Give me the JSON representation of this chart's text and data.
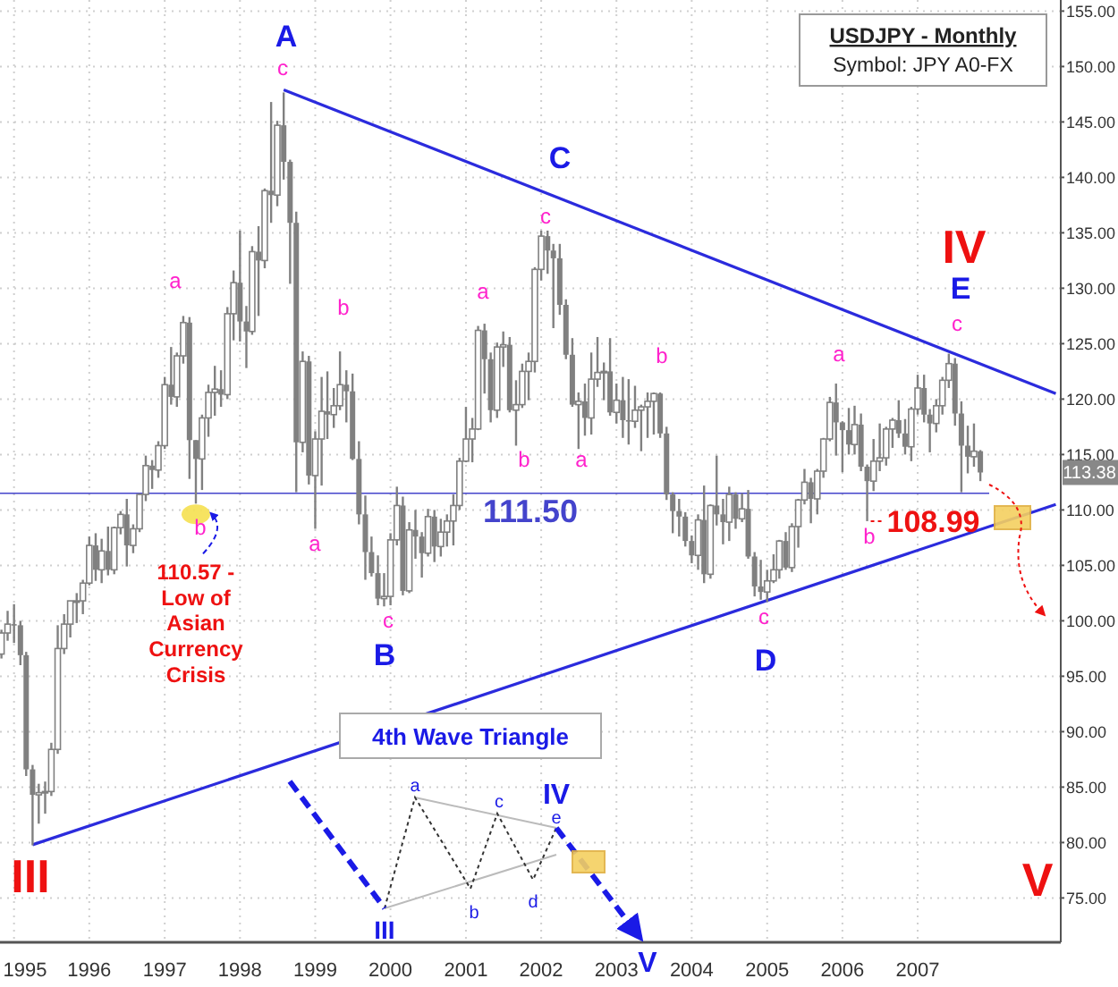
{
  "chart_data": {
    "type": "candlestick",
    "title": "USDJPY - Monthly",
    "subtitle": "Symbol: JPY A0-FX",
    "color": "#808080",
    "grid": true,
    "xlim": [
      "1994-10-25",
      "2008-11-25"
    ],
    "xticks": [
      "1995",
      "1996",
      "1997",
      "1998",
      "1999",
      "2000",
      "2001",
      "2002",
      "2003",
      "2004",
      "2005",
      "2006",
      "2007"
    ],
    "ylim": [
      71,
      156
    ],
    "yticks": [
      {
        "value": 75,
        "label": "75.00"
      },
      {
        "value": 80,
        "label": "80.00"
      },
      {
        "value": 85,
        "label": "85.00"
      },
      {
        "value": 90,
        "label": "90.00"
      },
      {
        "value": 95,
        "label": "95.00"
      },
      {
        "value": 100,
        "label": "100.00"
      },
      {
        "value": 105,
        "label": "105.00"
      },
      {
        "value": 110,
        "label": "110.00"
      },
      {
        "value": 115,
        "label": "115.00"
      },
      {
        "value": 120,
        "label": "120.00"
      },
      {
        "value": 125,
        "label": "125.00"
      },
      {
        "value": 130,
        "label": "130.00"
      },
      {
        "value": 135,
        "label": "135.00"
      },
      {
        "value": 140,
        "label": "140.00"
      },
      {
        "value": 145,
        "label": "145.00"
      },
      {
        "value": 150,
        "label": "150.00"
      },
      {
        "value": 155,
        "label": "155.00"
      }
    ],
    "x": [
      "1994-11",
      "1994-12",
      "1995-01",
      "1995-02",
      "1995-03",
      "1995-04",
      "1995-05",
      "1995-06",
      "1995-07",
      "1995-08",
      "1995-09",
      "1995-10",
      "1995-11",
      "1995-12",
      "1996-01",
      "1996-02",
      "1996-03",
      "1996-04",
      "1996-05",
      "1996-06",
      "1996-07",
      "1996-08",
      "1996-09",
      "1996-10",
      "1996-11",
      "1996-12",
      "1997-01",
      "1997-02",
      "1997-03",
      "1997-04",
      "1997-05",
      "1997-06",
      "1997-07",
      "1997-08",
      "1997-09",
      "1997-10",
      "1997-11",
      "1997-12",
      "1998-01",
      "1998-02",
      "1998-03",
      "1998-04",
      "1998-05",
      "1998-06",
      "1998-07",
      "1998-08",
      "1998-09",
      "1998-10",
      "1998-11",
      "1998-12",
      "1999-01",
      "1999-02",
      "1999-03",
      "1999-04",
      "1999-05",
      "1999-06",
      "1999-07",
      "1999-08",
      "1999-09",
      "1999-10",
      "1999-11",
      "1999-12",
      "2000-01",
      "2000-02",
      "2000-03",
      "2000-04",
      "2000-05",
      "2000-06",
      "2000-07",
      "2000-08",
      "2000-09",
      "2000-10",
      "2000-11",
      "2000-12",
      "2001-01",
      "2001-02",
      "2001-03",
      "2001-04",
      "2001-05",
      "2001-06",
      "2001-07",
      "2001-08",
      "2001-09",
      "2001-10",
      "2001-11",
      "2001-12",
      "2002-01",
      "2002-02",
      "2002-03",
      "2002-04",
      "2002-05",
      "2002-06",
      "2002-07",
      "2002-08",
      "2002-09",
      "2002-10",
      "2002-11",
      "2002-12",
      "2003-01",
      "2003-02",
      "2003-03",
      "2003-04",
      "2003-05",
      "2003-06",
      "2003-07",
      "2003-08",
      "2003-09",
      "2003-10",
      "2003-11",
      "2003-12",
      "2004-01",
      "2004-02",
      "2004-03",
      "2004-04",
      "2004-05",
      "2004-06",
      "2004-07",
      "2004-08",
      "2004-09",
      "2004-10",
      "2004-11",
      "2004-12",
      "2005-01",
      "2005-02",
      "2005-03",
      "2005-04",
      "2005-05",
      "2005-06",
      "2005-07",
      "2005-08",
      "2005-09",
      "2005-10",
      "2005-11",
      "2005-12",
      "2006-01",
      "2006-02",
      "2006-03",
      "2006-04",
      "2006-05",
      "2006-06",
      "2006-07",
      "2006-08",
      "2006-09",
      "2006-10",
      "2006-11",
      "2006-12",
      "2007-01",
      "2007-02",
      "2007-03",
      "2007-04",
      "2007-05",
      "2007-06",
      "2007-07",
      "2007-08",
      "2007-09",
      "2007-10",
      "2007-11"
    ],
    "ohlc": [
      [
        97.0,
        99.2,
        96.6,
        98.9
      ],
      [
        98.9,
        100.9,
        98.2,
        99.7
      ],
      [
        99.7,
        101.5,
        98.0,
        99.6
      ],
      [
        99.6,
        100.0,
        96.0,
        96.9
      ],
      [
        96.9,
        97.2,
        86.0,
        86.6
      ],
      [
        86.6,
        87.0,
        79.75,
        84.3
      ],
      [
        84.3,
        85.3,
        81.7,
        84.5
      ],
      [
        84.5,
        85.5,
        82.6,
        84.6
      ],
      [
        84.6,
        89.0,
        84.2,
        88.4
      ],
      [
        88.4,
        99.6,
        88.0,
        97.5
      ],
      [
        97.5,
        100.6,
        97.0,
        99.7
      ],
      [
        99.7,
        101.8,
        98.5,
        101.8
      ],
      [
        101.8,
        102.5,
        99.8,
        101.8
      ],
      [
        101.8,
        103.7,
        100.6,
        103.4
      ],
      [
        103.4,
        107.6,
        103.2,
        106.8
      ],
      [
        106.8,
        107.9,
        103.6,
        104.6
      ],
      [
        104.6,
        107.4,
        103.4,
        106.3
      ],
      [
        106.3,
        108.5,
        104.1,
        104.6
      ],
      [
        104.6,
        108.5,
        104.2,
        108.4
      ],
      [
        108.4,
        109.9,
        107.8,
        109.6
      ],
      [
        109.6,
        111.0,
        104.9,
        106.8
      ],
      [
        106.8,
        108.7,
        106.1,
        108.3
      ],
      [
        108.3,
        111.5,
        108.0,
        111.4
      ],
      [
        111.4,
        114.9,
        110.8,
        114.0
      ],
      [
        114.0,
        114.5,
        111.9,
        113.6
      ],
      [
        113.6,
        116.2,
        112.9,
        115.8
      ],
      [
        115.8,
        122.0,
        115.5,
        121.3
      ],
      [
        121.3,
        124.7,
        119.5,
        120.2
      ],
      [
        120.2,
        124.2,
        119.3,
        123.9
      ],
      [
        123.9,
        127.5,
        123.2,
        126.9
      ],
      [
        126.9,
        127.4,
        112.8,
        116.3
      ],
      [
        116.3,
        116.3,
        110.57,
        114.6
      ],
      [
        114.6,
        118.6,
        111.8,
        118.3
      ],
      [
        118.3,
        121.3,
        116.6,
        120.6
      ],
      [
        120.6,
        123.0,
        118.5,
        120.9
      ],
      [
        120.9,
        122.6,
        119.3,
        120.4
      ],
      [
        120.4,
        128.3,
        120.0,
        127.7
      ],
      [
        127.7,
        131.6,
        125.3,
        130.5
      ],
      [
        130.5,
        135.2,
        125.2,
        127.0
      ],
      [
        127.0,
        128.4,
        122.8,
        126.1
      ],
      [
        126.1,
        133.8,
        125.8,
        133.3
      ],
      [
        133.3,
        135.6,
        127.5,
        132.5
      ],
      [
        132.5,
        139.0,
        131.8,
        138.8
      ],
      [
        138.8,
        146.8,
        135.9,
        138.4
      ],
      [
        138.4,
        145.1,
        137.4,
        144.7
      ],
      [
        144.7,
        147.66,
        139.8,
        141.4
      ],
      [
        141.4,
        141.6,
        130.4,
        135.9
      ],
      [
        135.9,
        136.9,
        111.6,
        116.1
      ],
      [
        116.1,
        124.3,
        115.2,
        123.4
      ],
      [
        123.4,
        123.9,
        112.3,
        113.1
      ],
      [
        113.1,
        117.1,
        108.3,
        116.4
      ],
      [
        116.4,
        122.0,
        112.2,
        118.9
      ],
      [
        118.9,
        122.5,
        116.4,
        118.6
      ],
      [
        118.6,
        121.0,
        117.4,
        119.4
      ],
      [
        119.4,
        124.3,
        119.0,
        121.3
      ],
      [
        121.3,
        122.6,
        117.9,
        120.7
      ],
      [
        120.7,
        122.3,
        114.5,
        114.6
      ],
      [
        114.6,
        116.2,
        108.7,
        109.6
      ],
      [
        109.6,
        111.3,
        103.7,
        106.2
      ],
      [
        106.2,
        107.6,
        104.0,
        104.3
      ],
      [
        104.3,
        105.9,
        101.4,
        102.0
      ],
      [
        102.0,
        104.3,
        101.3,
        102.2
      ],
      [
        102.2,
        107.9,
        101.4,
        107.3
      ],
      [
        107.3,
        112.1,
        106.8,
        110.4
      ],
      [
        110.4,
        111.2,
        102.3,
        102.7
      ],
      [
        102.7,
        108.9,
        102.5,
        108.2
      ],
      [
        108.2,
        110.0,
        105.6,
        107.6
      ],
      [
        107.6,
        108.0,
        103.9,
        106.1
      ],
      [
        106.1,
        110.1,
        105.8,
        109.4
      ],
      [
        109.4,
        110.0,
        105.3,
        106.7
      ],
      [
        106.7,
        109.2,
        105.8,
        108.0
      ],
      [
        108.0,
        109.6,
        106.7,
        109.0
      ],
      [
        109.0,
        111.4,
        106.8,
        110.4
      ],
      [
        110.4,
        114.7,
        110.0,
        114.4
      ],
      [
        114.4,
        119.3,
        114.3,
        116.4
      ],
      [
        116.4,
        118.3,
        114.3,
        117.3
      ],
      [
        117.3,
        126.6,
        117.2,
        126.2
      ],
      [
        126.2,
        126.8,
        120.5,
        123.6
      ],
      [
        123.6,
        124.2,
        117.9,
        119.0
      ],
      [
        119.0,
        125.1,
        118.3,
        124.7
      ],
      [
        124.7,
        126.1,
        122.9,
        124.9
      ],
      [
        124.9,
        125.6,
        118.8,
        119.0
      ],
      [
        119.0,
        121.7,
        115.8,
        119.5
      ],
      [
        119.5,
        123.2,
        119.2,
        122.5
      ],
      [
        122.5,
        124.2,
        119.9,
        123.4
      ],
      [
        123.4,
        131.9,
        122.4,
        131.7
      ],
      [
        131.7,
        135.2,
        130.7,
        134.7
      ],
      [
        134.7,
        135.2,
        131.3,
        133.4
      ],
      [
        133.4,
        134.0,
        126.4,
        132.7
      ],
      [
        132.7,
        134.0,
        127.6,
        128.5
      ],
      [
        128.5,
        129.0,
        123.6,
        124.0
      ],
      [
        124.0,
        125.5,
        119.3,
        119.5
      ],
      [
        119.5,
        120.6,
        115.5,
        119.8
      ],
      [
        119.8,
        121.4,
        116.7,
        118.3
      ],
      [
        118.3,
        124.2,
        116.8,
        121.8
      ],
      [
        121.8,
        125.6,
        121.1,
        122.4
      ],
      [
        122.4,
        123.3,
        119.9,
        122.5
      ],
      [
        122.5,
        125.5,
        118.5,
        118.8
      ],
      [
        118.8,
        121.4,
        117.8,
        119.9
      ],
      [
        119.9,
        122.0,
        116.5,
        118.1
      ],
      [
        118.1,
        121.8,
        115.9,
        118.0
      ],
      [
        118.0,
        121.2,
        117.4,
        119.0
      ],
      [
        119.0,
        119.5,
        115.3,
        119.3
      ],
      [
        119.3,
        120.6,
        116.5,
        119.8
      ],
      [
        119.8,
        120.6,
        116.8,
        120.5
      ],
      [
        120.5,
        120.6,
        116.5,
        116.9
      ],
      [
        116.9,
        117.5,
        110.9,
        111.4
      ],
      [
        111.4,
        111.6,
        107.9,
        109.9
      ],
      [
        109.9,
        111.0,
        107.6,
        109.4
      ],
      [
        109.4,
        109.8,
        106.7,
        107.2
      ],
      [
        107.2,
        107.7,
        105.2,
        105.9
      ],
      [
        105.9,
        109.6,
        104.6,
        109.1
      ],
      [
        109.1,
        112.2,
        103.4,
        104.2
      ],
      [
        104.2,
        110.5,
        103.8,
        110.4
      ],
      [
        110.4,
        114.9,
        108.6,
        109.6
      ],
      [
        109.6,
        111.0,
        106.9,
        108.9
      ],
      [
        108.9,
        112.1,
        107.2,
        111.4
      ],
      [
        111.4,
        111.6,
        108.3,
        109.2
      ],
      [
        109.2,
        111.5,
        108.9,
        110.1
      ],
      [
        110.1,
        111.8,
        105.6,
        105.8
      ],
      [
        105.8,
        106.2,
        102.2,
        103.1
      ],
      [
        103.1,
        105.5,
        101.9,
        102.6
      ],
      [
        102.6,
        104.6,
        101.7,
        103.6
      ],
      [
        103.6,
        106.0,
        103.4,
        104.6
      ],
      [
        104.6,
        107.3,
        103.8,
        107.2
      ],
      [
        107.2,
        108.0,
        104.6,
        104.8
      ],
      [
        104.8,
        108.8,
        104.4,
        108.5
      ],
      [
        108.5,
        111.0,
        106.6,
        110.9
      ],
      [
        110.9,
        113.7,
        110.5,
        112.5
      ],
      [
        112.5,
        112.9,
        108.8,
        111.0
      ],
      [
        111.0,
        113.7,
        109.6,
        113.5
      ],
      [
        113.5,
        116.5,
        112.9,
        116.4
      ],
      [
        116.4,
        120.2,
        116.2,
        119.7
      ],
      [
        119.7,
        121.4,
        114.9,
        117.9
      ],
      [
        117.9,
        118.0,
        113.4,
        117.2
      ],
      [
        117.2,
        119.2,
        115.0,
        115.9
      ],
      [
        115.9,
        119.4,
        115.0,
        117.7
      ],
      [
        117.7,
        118.7,
        113.5,
        113.9
      ],
      [
        113.9,
        114.1,
        108.99,
        112.6
      ],
      [
        112.6,
        116.4,
        111.7,
        114.4
      ],
      [
        114.4,
        117.8,
        113.5,
        114.7
      ],
      [
        114.7,
        117.5,
        114.0,
        117.3
      ],
      [
        117.3,
        118.3,
        115.6,
        118.1
      ],
      [
        118.1,
        119.9,
        116.5,
        116.9
      ],
      [
        116.9,
        118.2,
        115.0,
        115.7
      ],
      [
        115.7,
        119.3,
        114.4,
        119.1
      ],
      [
        119.1,
        122.2,
        118.6,
        121.0
      ],
      [
        121.0,
        122.2,
        117.9,
        118.6
      ],
      [
        118.6,
        119.1,
        115.2,
        117.8
      ],
      [
        117.8,
        120.0,
        117.0,
        119.4
      ],
      [
        119.4,
        122.0,
        118.6,
        121.7
      ],
      [
        121.7,
        124.1,
        121.0,
        123.2
      ],
      [
        123.2,
        123.7,
        117.6,
        118.7
      ],
      [
        118.7,
        119.8,
        111.6,
        115.8
      ],
      [
        115.8,
        117.6,
        113.3,
        114.8
      ],
      [
        114.8,
        117.8,
        113.9,
        115.3
      ],
      [
        115.3,
        115.4,
        112.6,
        113.38
      ]
    ],
    "series": [
      {
        "type": "line",
        "color": "#2b2bdd",
        "x": [
          "1998-08",
          "2008-11"
        ],
        "values": [
          147.9,
          120.5
        ]
      },
      {
        "type": "line",
        "color": "#2b2bdd",
        "x": [
          "1995-04",
          "2008-11"
        ],
        "values": [
          79.8,
          110.5
        ]
      }
    ],
    "ref_lines": [
      {
        "axis": "y",
        "value": 111.5,
        "label": "111.50",
        "color": "#4444cc"
      }
    ],
    "annotations": [
      "A",
      "c",
      "C",
      "c",
      "IV",
      "E",
      "c",
      "a",
      "b",
      "b",
      "a",
      "c",
      "B",
      "a",
      "b",
      "a",
      "b",
      "c",
      "D",
      "a",
      "b",
      {
        "text": "108.99",
        "x": "2006-05",
        "y": 108.99
      },
      {
        "text": "110.57 - Low of Asian Currency Crisis",
        "x": "1997-06",
        "y": 110.57
      },
      "III",
      "V",
      "113.38",
      "4th Wave Triangle",
      "III",
      "a",
      "b",
      "c",
      "d",
      "e",
      "IV",
      "V"
    ]
  }
}
